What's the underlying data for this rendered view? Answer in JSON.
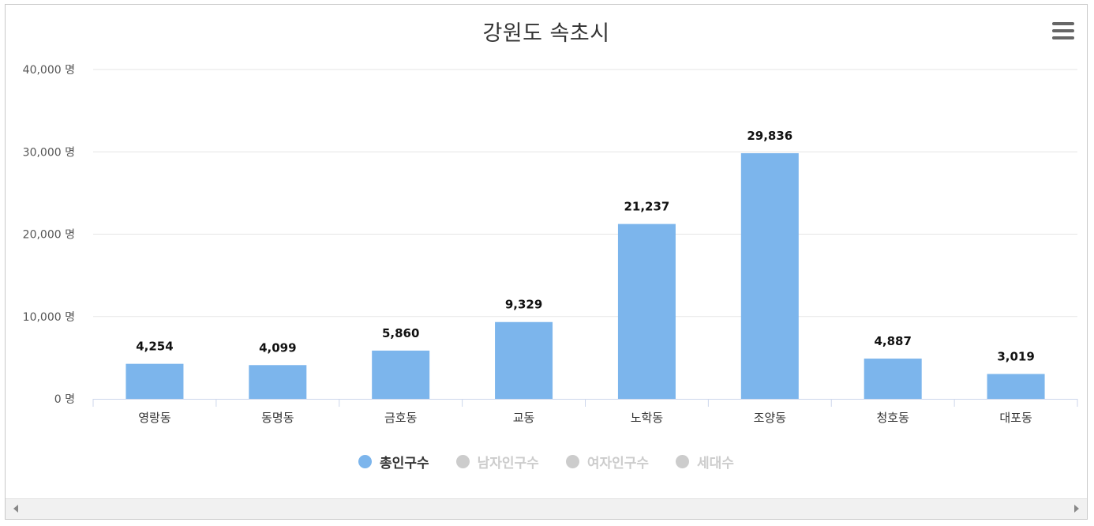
{
  "menu_icon": "hamburger-menu-icon",
  "scroll_icons": [
    "scroll-left-arrow-icon",
    "scroll-right-arrow-icon"
  ],
  "legend": [
    {
      "label": "총인구수",
      "color": "#7cb5ec",
      "active": true
    },
    {
      "label": "남자인구수",
      "color": "#cccccc",
      "active": false
    },
    {
      "label": "여자인구수",
      "color": "#cccccc",
      "active": false
    },
    {
      "label": "세대수",
      "color": "#cccccc",
      "active": false
    }
  ],
  "chart_data": {
    "type": "bar",
    "title": "강원도 속초시",
    "categories": [
      "영랑동",
      "동명동",
      "금호동",
      "교동",
      "노학동",
      "조양동",
      "청호동",
      "대포동"
    ],
    "series": [
      {
        "name": "총인구수",
        "color": "#7cb5ec",
        "values": [
          4254,
          4099,
          5860,
          9329,
          21237,
          29836,
          4887,
          3019
        ]
      }
    ],
    "data_labels": [
      "4,254",
      "4,099",
      "5,860",
      "9,329",
      "21,237",
      "29,836",
      "4,887",
      "3,019"
    ],
    "ylim": [
      0,
      40000
    ],
    "yticks": [
      "0 명",
      "10,000 명",
      "20,000 명",
      "30,000 명",
      "40,000 명"
    ],
    "grid": true,
    "legend_position": "bottom"
  }
}
